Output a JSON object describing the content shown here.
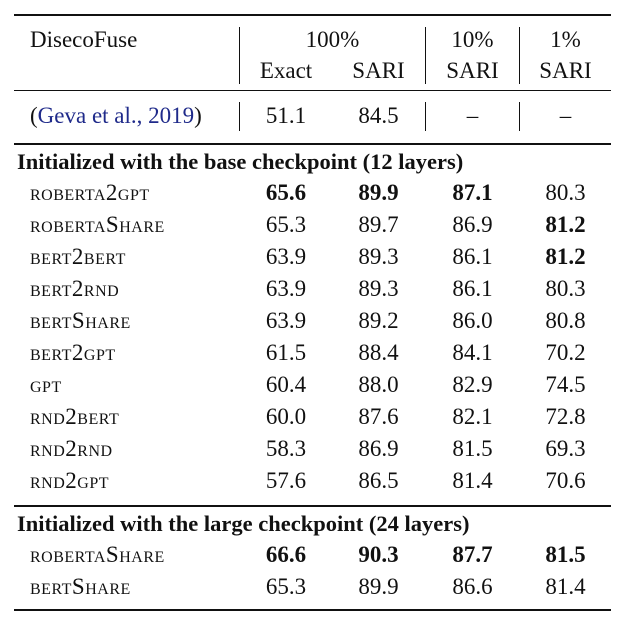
{
  "header": {
    "dataset": "DisecoFuse",
    "groups": [
      "100%",
      "10%",
      "1%"
    ],
    "metrics": [
      "Exact",
      "SARI",
      "SARI",
      "SARI"
    ]
  },
  "prior": {
    "open": "(",
    "cite": "Geva et al., 2019",
    "close": ")",
    "values": [
      "51.1",
      "84.5",
      "–",
      "–"
    ]
  },
  "sections": [
    {
      "title": "Initialized with the base checkpoint (12 layers)",
      "rows": [
        {
          "name": "roberta2gpt",
          "values": [
            "65.6",
            "89.9",
            "87.1",
            "80.3"
          ],
          "bold": [
            true,
            true,
            true,
            false
          ]
        },
        {
          "name": "robertaShare",
          "values": [
            "65.3",
            "89.7",
            "86.9",
            "81.2"
          ],
          "bold": [
            false,
            false,
            false,
            true
          ]
        },
        {
          "name": "bert2bert",
          "values": [
            "63.9",
            "89.3",
            "86.1",
            "81.2"
          ],
          "bold": [
            false,
            false,
            false,
            true
          ]
        },
        {
          "name": "bert2rnd",
          "values": [
            "63.9",
            "89.3",
            "86.1",
            "80.3"
          ],
          "bold": [
            false,
            false,
            false,
            false
          ]
        },
        {
          "name": "bertShare",
          "values": [
            "63.9",
            "89.2",
            "86.0",
            "80.8"
          ],
          "bold": [
            false,
            false,
            false,
            false
          ]
        },
        {
          "name": "bert2gpt",
          "values": [
            "61.5",
            "88.4",
            "84.1",
            "70.2"
          ],
          "bold": [
            false,
            false,
            false,
            false
          ]
        },
        {
          "name": "gpt",
          "values": [
            "60.4",
            "88.0",
            "82.9",
            "74.5"
          ],
          "bold": [
            false,
            false,
            false,
            false
          ]
        },
        {
          "name": "rnd2bert",
          "values": [
            "60.0",
            "87.6",
            "82.1",
            "72.8"
          ],
          "bold": [
            false,
            false,
            false,
            false
          ]
        },
        {
          "name": "rnd2rnd",
          "values": [
            "58.3",
            "86.9",
            "81.5",
            "69.3"
          ],
          "bold": [
            false,
            false,
            false,
            false
          ]
        },
        {
          "name": "rnd2gpt",
          "values": [
            "57.6",
            "86.5",
            "81.4",
            "70.6"
          ],
          "bold": [
            false,
            false,
            false,
            false
          ]
        }
      ]
    },
    {
      "title": "Initialized with the large checkpoint (24 layers)",
      "rows": [
        {
          "name": "robertaShare",
          "values": [
            "66.6",
            "90.3",
            "87.7",
            "81.5"
          ],
          "bold": [
            true,
            true,
            true,
            true
          ]
        },
        {
          "name": "bertShare",
          "values": [
            "65.3",
            "89.9",
            "86.6",
            "81.4"
          ],
          "bold": [
            false,
            false,
            false,
            false
          ]
        }
      ]
    }
  ]
}
